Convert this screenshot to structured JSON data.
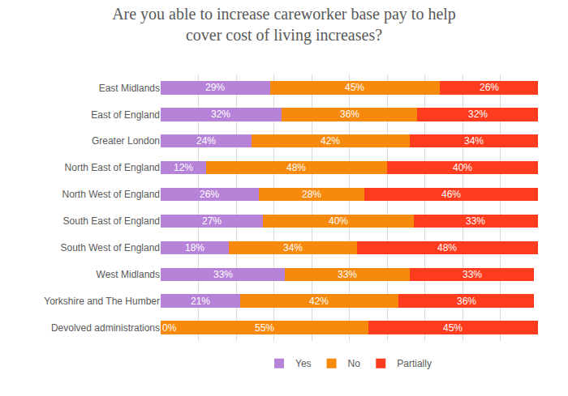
{
  "chart_data": {
    "type": "bar",
    "title": "Are you able to increase careworker base pay to help\ncover cost of living increases?",
    "orientation": "horizontal",
    "stacked": true,
    "data_labels": true,
    "tick_labels": "y",
    "grid": true,
    "legend": "bottom",
    "xlim": [
      0,
      100
    ],
    "xticks": [
      0,
      10,
      20,
      30,
      40,
      50,
      60,
      70,
      80,
      90,
      100
    ],
    "categories": [
      "East Midlands",
      "East of England",
      "Greater London",
      "North East of England",
      "North West of England",
      "South East of England",
      "South West of England",
      "West Midlands",
      "Yorkshire and The Humber",
      "Devolved administrations"
    ],
    "series": [
      {
        "name": "Yes",
        "color": "#B683D8",
        "values": [
          29,
          32,
          24,
          12,
          26,
          27,
          18,
          33,
          21,
          0
        ],
        "value_labels": [
          "29%",
          "32%",
          "24%",
          "12%",
          "26%",
          "27%",
          "18%",
          "33%",
          "21%",
          "0%"
        ]
      },
      {
        "name": "No",
        "color": "#F7890C",
        "values": [
          45,
          36,
          42,
          48,
          28,
          40,
          34,
          33,
          42,
          55
        ],
        "value_labels": [
          "45%",
          "36%",
          "42%",
          "48%",
          "28%",
          "40%",
          "34%",
          "33%",
          "42%",
          "55%"
        ]
      },
      {
        "name": "Partially",
        "color": "#FF3C1E",
        "values": [
          26,
          32,
          34,
          40,
          46,
          33,
          48,
          33,
          36,
          45
        ],
        "value_labels": [
          "26%",
          "32%",
          "34%",
          "40%",
          "46%",
          "33%",
          "48%",
          "33%",
          "36%",
          "45%"
        ]
      }
    ]
  }
}
